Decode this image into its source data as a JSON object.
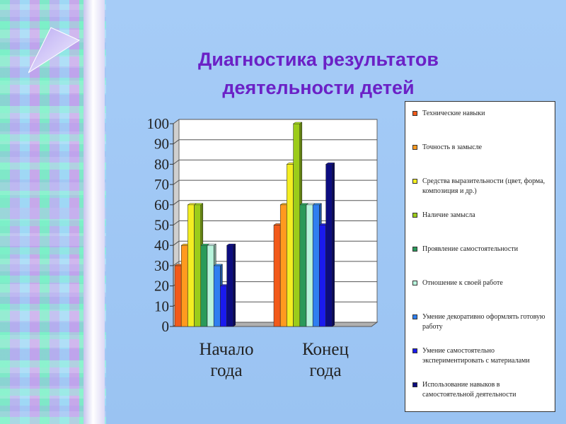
{
  "slide": {
    "title_line1": "Диагностика результатов",
    "title_line2": "деятельности детей",
    "decor_icon": "triangle-arrow-icon"
  },
  "chart_data": {
    "type": "bar",
    "categories": [
      "Начало года",
      "Конец года"
    ],
    "category_lines": [
      [
        "Начало",
        "года"
      ],
      [
        "Конец",
        "года"
      ]
    ],
    "ylim": [
      0,
      100
    ],
    "yticks": [
      0,
      10,
      20,
      30,
      40,
      50,
      60,
      70,
      80,
      90,
      100
    ],
    "legend_placement": "right",
    "grid": true,
    "series": [
      {
        "name": "Технические навыки",
        "color": "#f25a1a",
        "values": [
          30,
          50
        ]
      },
      {
        "name": "Точность в замысле",
        "color": "#ff9a1f",
        "values": [
          40,
          60
        ]
      },
      {
        "name": "Средства выразительности (цвет, форма, композиция и др.)",
        "color": "#f4ee22",
        "values": [
          60,
          80
        ]
      },
      {
        "name": "Наличие замысла",
        "color": "#9ccc1a",
        "values": [
          60,
          100
        ]
      },
      {
        "name": "Проявление самостоятельности",
        "color": "#2a9a5a",
        "values": [
          40,
          60
        ]
      },
      {
        "name": "Отношение к своей работе",
        "color": "#b8f4dc",
        "values": [
          40,
          60
        ]
      },
      {
        "name": "Умение декоративно оформлять готовую работу",
        "color": "#2f7ff0",
        "values": [
          30,
          60
        ]
      },
      {
        "name": "Умение самостоятельно экспериментировать с материалами",
        "color": "#1a1aee",
        "values": [
          20,
          50
        ]
      },
      {
        "name": "Использование навыков в самостоятельной деятельности",
        "color": "#0c0c80",
        "values": [
          40,
          80
        ]
      }
    ]
  }
}
